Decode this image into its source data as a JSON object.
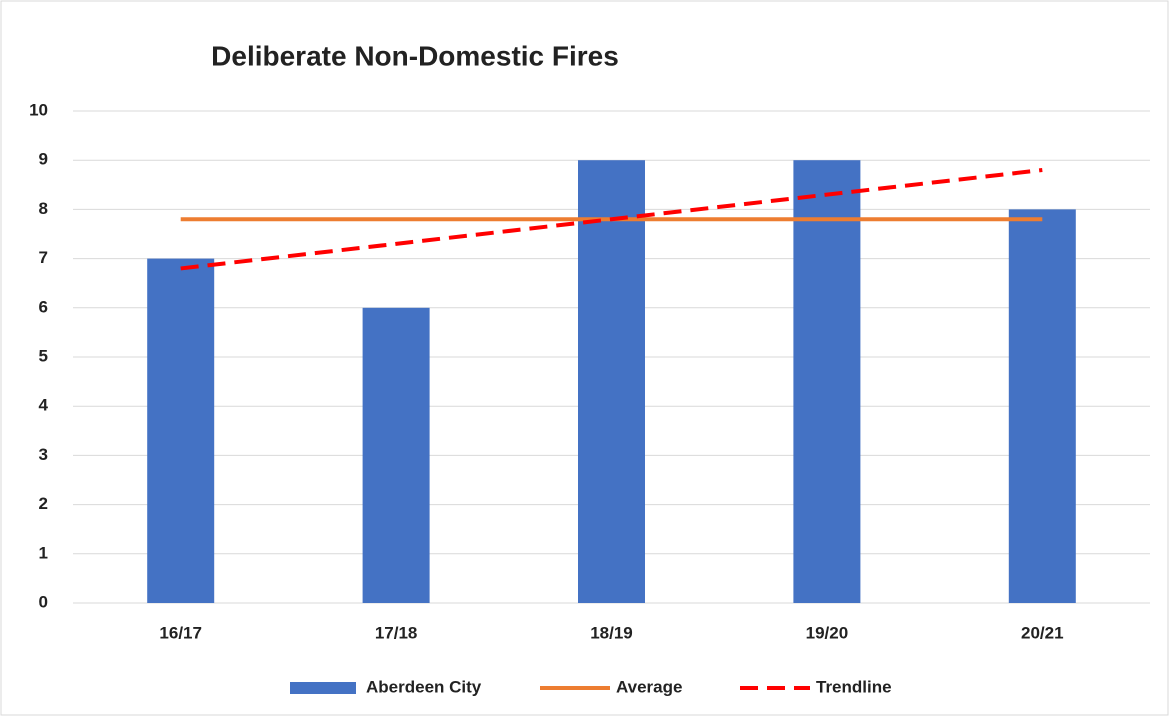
{
  "chart_data": {
    "type": "bar",
    "title": "Deliberate Non-Domestic Fires",
    "categories": [
      "16/17",
      "17/18",
      "18/19",
      "19/20",
      "20/21"
    ],
    "series": [
      {
        "name": "Aberdeen City",
        "type": "bar",
        "color": "#4472c4",
        "values": [
          7,
          6,
          9,
          9,
          8
        ]
      },
      {
        "name": "Average",
        "type": "line",
        "color": "#ed7d31",
        "values": [
          7.8,
          7.8,
          7.8,
          7.8,
          7.8
        ]
      },
      {
        "name": "Trendline",
        "type": "line",
        "dashed": true,
        "color": "#ff0000",
        "values": [
          6.8,
          7.3,
          7.8,
          8.3,
          8.8
        ]
      }
    ],
    "ylim": [
      0,
      10
    ],
    "yticks": [
      0,
      1,
      2,
      3,
      4,
      5,
      6,
      7,
      8,
      9,
      10
    ],
    "grid": true,
    "legend": "bottom"
  }
}
